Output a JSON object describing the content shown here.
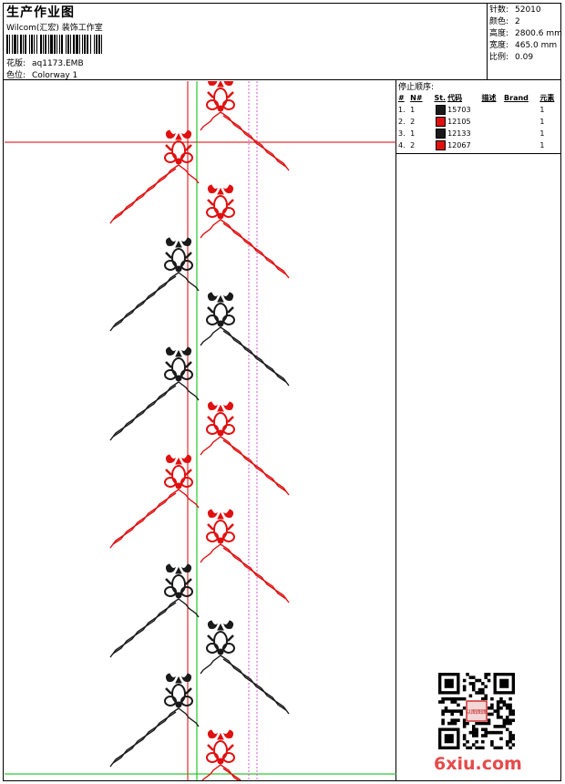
{
  "header": {
    "title": "生产作业图",
    "subtitle": "Wilcom(汇宏) 装饰工作室",
    "design_label": "花版:",
    "design_value": "aq1173.EMB",
    "colorway_label": "色位:",
    "colorway_value": "Colorway 1"
  },
  "stats": [
    {
      "label": "针数:",
      "value": "52010"
    },
    {
      "label": "颜色:",
      "value": "2"
    },
    {
      "label": "高度:",
      "value": "2800.6 mm"
    },
    {
      "label": "宽度:",
      "value": "465.0 mm"
    },
    {
      "label": "比例:",
      "value": "0.09"
    }
  ],
  "stop_sequence": {
    "title": "停止顺序:",
    "columns": [
      "#",
      "N#",
      "St.",
      "代码",
      "描述",
      "Brand",
      "元素"
    ],
    "rows": [
      {
        "num": "1.",
        "n": "1",
        "color": "#1a1a1a",
        "code": "15703",
        "elements": "1"
      },
      {
        "num": "2.",
        "n": "2",
        "color": "#e01010",
        "code": "12105",
        "elements": "1"
      },
      {
        "num": "3.",
        "n": "1",
        "color": "#1a1a1a",
        "code": "12133",
        "elements": "1"
      },
      {
        "num": "4.",
        "n": "2",
        "color": "#e01010",
        "code": "12067",
        "elements": "1"
      }
    ]
  },
  "design": {
    "motif_colors": [
      "red",
      "red",
      "red",
      "black",
      "black",
      "black",
      "red",
      "red",
      "red",
      "black",
      "black",
      "black"
    ]
  },
  "colors": {
    "red": "#e01010",
    "black": "#1a1a1a",
    "guide_red": "#dd0000",
    "guide_green": "#00bb00",
    "guide_magenta": "#cc33cc"
  },
  "watermark": "6xiu.com",
  "qr_stamp_text": "以图图图"
}
